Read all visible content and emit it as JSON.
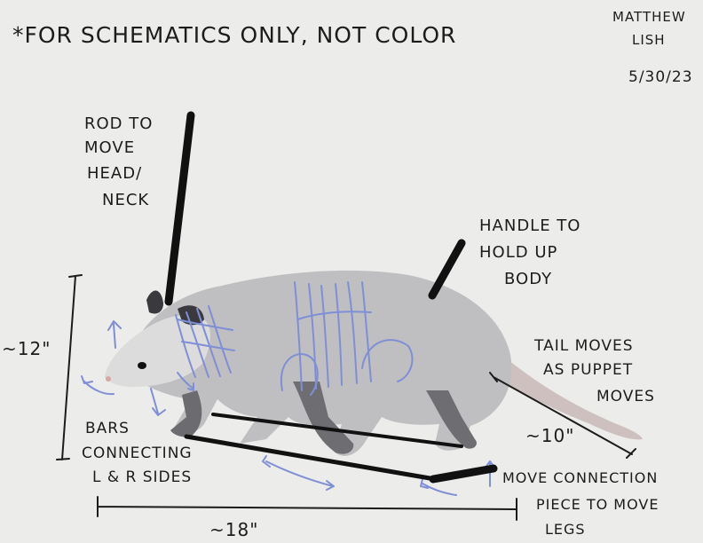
{
  "header": {
    "note": "*FOR SCHEMATICS ONLY, NOT COLOR",
    "author_line1": "MATTHEW",
    "author_line2": "LISH",
    "date": "5/30/23"
  },
  "annotations": {
    "rod": [
      "ROD TO",
      "MOVE",
      "HEAD/",
      "NECK"
    ],
    "handle": [
      "HANDLE TO",
      "HOLD UP",
      "BODY"
    ],
    "tail": [
      "TAIL MOVES",
      "AS PUPPET",
      "MOVES"
    ],
    "bars": [
      "BARS",
      "CONNECTING",
      "L & R SIDES"
    ],
    "move_piece": [
      "MOVE CONNECTION",
      "PIECE TO MOVE",
      "LEGS"
    ]
  },
  "dimensions": {
    "height": "~12\"",
    "length": "~18\"",
    "tail": "~10\""
  },
  "colors": {
    "ink": "#1c1c1c",
    "mechanism": "#7f8fd6",
    "fur": "#bfbfc2",
    "background": "#ececea"
  }
}
